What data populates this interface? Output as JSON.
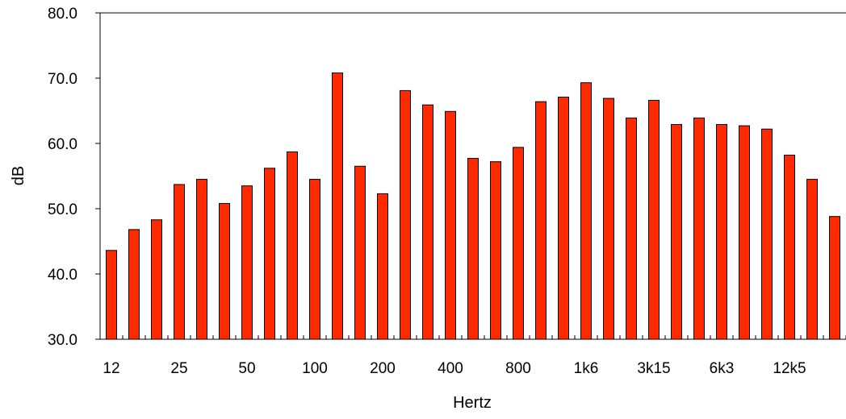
{
  "chart_data": {
    "type": "bar",
    "xlabel": "Hertz",
    "ylabel": "dB",
    "ylim": [
      30,
      80
    ],
    "yticks": [
      "30.0",
      "40.0",
      "50.0",
      "60.0",
      "70.0",
      "80.0"
    ],
    "x_tick_labels": [
      "12",
      "25",
      "50",
      "100",
      "200",
      "400",
      "800",
      "1k6",
      "3k15",
      "6k3",
      "12k5"
    ],
    "values": [
      43.6,
      46.8,
      48.3,
      53.7,
      54.5,
      50.8,
      53.5,
      56.2,
      58.7,
      54.5,
      70.8,
      56.5,
      52.3,
      68.1,
      65.9,
      64.9,
      57.7,
      57.2,
      59.4,
      66.4,
      67.1,
      69.3,
      66.9,
      63.9,
      66.6,
      62.9,
      63.9,
      62.9,
      62.7,
      62.2,
      58.2,
      54.5,
      48.8
    ],
    "bar_color": "#ff2a00",
    "bar_edge_color": "#000000",
    "grid": false,
    "legend": "none"
  }
}
